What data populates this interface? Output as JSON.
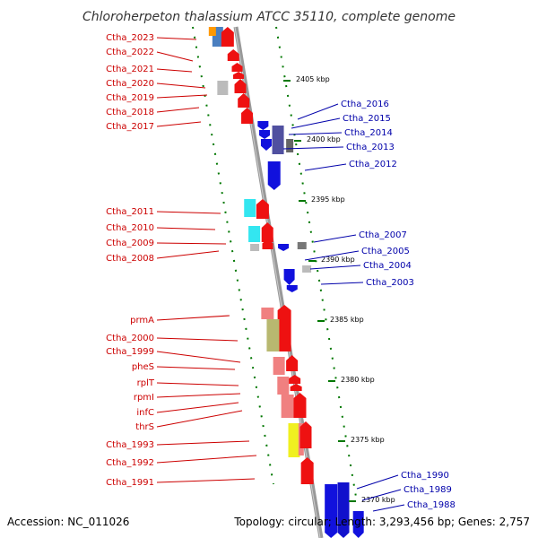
{
  "title": "Chloroherpeton thalassium ATCC 35110, complete genome",
  "footer": {
    "accession": "Accession: NC_011026",
    "summary": "Topology: circular; Length: 3,293,456 bp; Genes: 2,757"
  },
  "colors": {
    "label_left": "#cc0000",
    "label_right": "#0000aa",
    "forward_gene": "#ee1111",
    "reverse_gene": "#1111dd",
    "backbone": "#888888",
    "tick": "#007700"
  },
  "scale_ticks": [
    "2405 kbp",
    "2400 kbp",
    "2395 kbp",
    "2390 kbp",
    "2385 kbp",
    "2380 kbp",
    "2375 kbp",
    "2370 kbp"
  ],
  "left_labels": [
    "Ctha_2023",
    "Ctha_2022",
    "Ctha_2021",
    "Ctha_2020",
    "Ctha_2019",
    "Ctha_2018",
    "Ctha_2017",
    "Ctha_2011",
    "Ctha_2010",
    "Ctha_2009",
    "Ctha_2008",
    "prmA",
    "Ctha_2000",
    "Ctha_1999",
    "pheS",
    "rplT",
    "rpmI",
    "infC",
    "thrS",
    "Ctha_1993",
    "Ctha_1992",
    "Ctha_1991"
  ],
  "right_labels": [
    "Ctha_2016",
    "Ctha_2015",
    "Ctha_2014",
    "Ctha_2013",
    "Ctha_2012",
    "Ctha_2007",
    "Ctha_2005",
    "Ctha_2004",
    "Ctha_2003",
    "Ctha_1990",
    "Ctha_1989",
    "Ctha_1988"
  ]
}
